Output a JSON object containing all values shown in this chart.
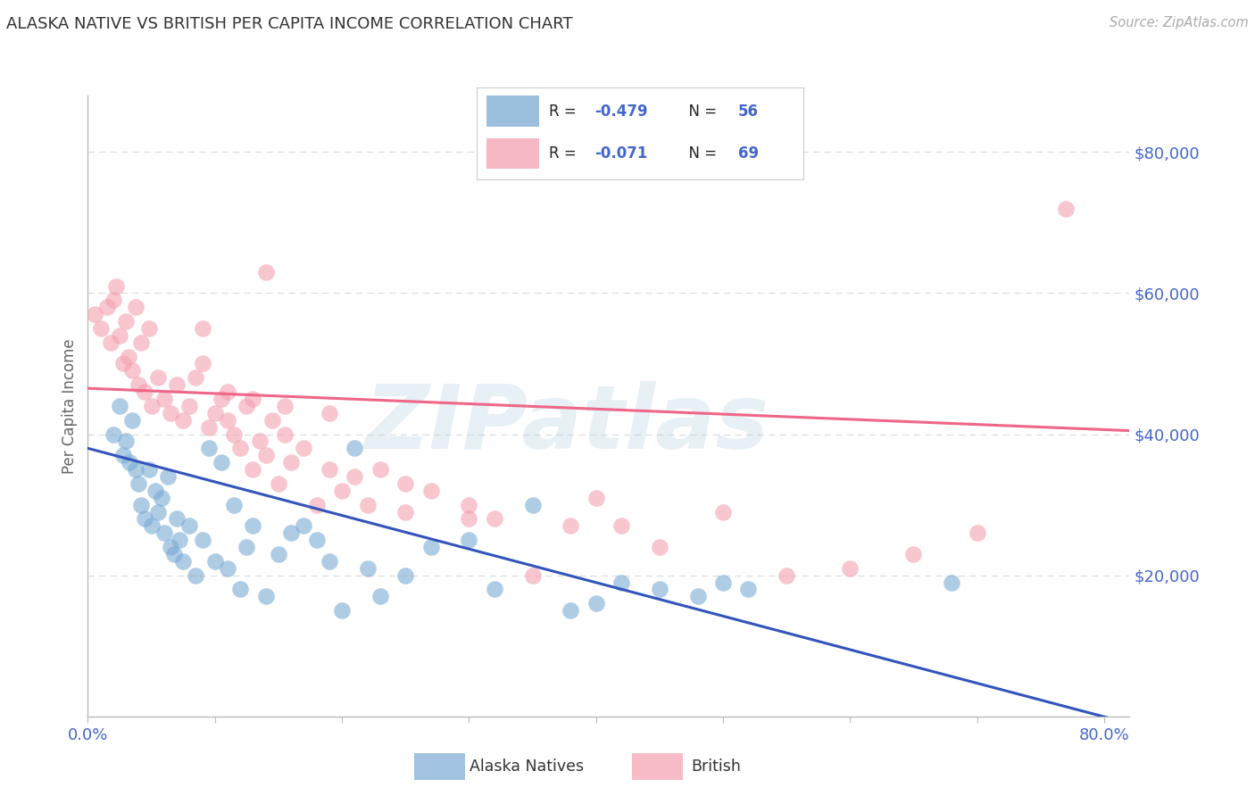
{
  "title": "ALASKA NATIVE VS BRITISH PER CAPITA INCOME CORRELATION CHART",
  "source": "Source: ZipAtlas.com",
  "ylabel": "Per Capita Income",
  "ytick_labels": [
    "$20,000",
    "$40,000",
    "$60,000",
    "$80,000"
  ],
  "ytick_vals": [
    20000,
    40000,
    60000,
    80000
  ],
  "xlim": [
    0.0,
    0.82
  ],
  "ylim": [
    0,
    88000
  ],
  "legend_blue_label": "Alaska Natives",
  "legend_pink_label": "British",
  "legend_r_blue": "R = ",
  "legend_val_blue": "-0.479",
  "legend_n_blue": "N = ",
  "legend_nval_blue": "56",
  "legend_r_pink": "R = ",
  "legend_val_pink": "-0.071",
  "legend_n_pink": "N = ",
  "legend_nval_pink": "69",
  "watermark": "ZIPatlas",
  "blue_color": "#7BAAD4",
  "pink_color": "#F4A0B0",
  "blue_line_color": "#3355BB",
  "pink_line_color": "#EE6688",
  "axis_right_color": "#4466CC",
  "grid_color": "#DDDDDD",
  "blue_scatter_x": [
    0.02,
    0.025,
    0.028,
    0.03,
    0.033,
    0.035,
    0.038,
    0.04,
    0.042,
    0.045,
    0.048,
    0.05,
    0.053,
    0.055,
    0.058,
    0.06,
    0.063,
    0.065,
    0.068,
    0.07,
    0.072,
    0.075,
    0.08,
    0.085,
    0.09,
    0.095,
    0.1,
    0.105,
    0.11,
    0.115,
    0.12,
    0.125,
    0.13,
    0.14,
    0.15,
    0.16,
    0.17,
    0.18,
    0.19,
    0.2,
    0.21,
    0.22,
    0.23,
    0.25,
    0.27,
    0.3,
    0.32,
    0.35,
    0.38,
    0.4,
    0.42,
    0.45,
    0.48,
    0.5,
    0.52,
    0.68
  ],
  "blue_scatter_y": [
    40000,
    44000,
    37000,
    39000,
    36000,
    42000,
    35000,
    33000,
    30000,
    28000,
    35000,
    27000,
    32000,
    29000,
    31000,
    26000,
    34000,
    24000,
    23000,
    28000,
    25000,
    22000,
    27000,
    20000,
    25000,
    38000,
    22000,
    36000,
    21000,
    30000,
    18000,
    24000,
    27000,
    17000,
    23000,
    26000,
    27000,
    25000,
    22000,
    15000,
    38000,
    21000,
    17000,
    20000,
    24000,
    25000,
    18000,
    30000,
    15000,
    16000,
    19000,
    18000,
    17000,
    19000,
    18000,
    19000
  ],
  "pink_scatter_x": [
    0.005,
    0.01,
    0.015,
    0.018,
    0.02,
    0.022,
    0.025,
    0.028,
    0.03,
    0.032,
    0.035,
    0.038,
    0.04,
    0.042,
    0.045,
    0.048,
    0.05,
    0.055,
    0.06,
    0.065,
    0.07,
    0.075,
    0.08,
    0.085,
    0.09,
    0.095,
    0.1,
    0.105,
    0.11,
    0.115,
    0.12,
    0.125,
    0.13,
    0.135,
    0.14,
    0.145,
    0.15,
    0.155,
    0.16,
    0.17,
    0.18,
    0.19,
    0.2,
    0.21,
    0.22,
    0.23,
    0.25,
    0.27,
    0.3,
    0.32,
    0.35,
    0.38,
    0.4,
    0.42,
    0.45,
    0.5,
    0.55,
    0.6,
    0.65,
    0.7,
    0.77,
    0.19,
    0.25,
    0.3,
    0.14,
    0.09,
    0.13,
    0.11,
    0.155
  ],
  "pink_scatter_y": [
    57000,
    55000,
    58000,
    53000,
    59000,
    61000,
    54000,
    50000,
    56000,
    51000,
    49000,
    58000,
    47000,
    53000,
    46000,
    55000,
    44000,
    48000,
    45000,
    43000,
    47000,
    42000,
    44000,
    48000,
    50000,
    41000,
    43000,
    45000,
    42000,
    40000,
    38000,
    44000,
    35000,
    39000,
    37000,
    42000,
    33000,
    40000,
    36000,
    38000,
    30000,
    35000,
    32000,
    34000,
    30000,
    35000,
    29000,
    32000,
    30000,
    28000,
    20000,
    27000,
    31000,
    27000,
    24000,
    29000,
    20000,
    21000,
    23000,
    26000,
    72000,
    43000,
    33000,
    28000,
    63000,
    55000,
    45000,
    46000,
    44000
  ],
  "blue_trend_x": [
    0.0,
    0.82
  ],
  "blue_trend_y": [
    38000,
    -1000
  ],
  "pink_trend_x": [
    0.0,
    0.82
  ],
  "pink_trend_y": [
    46500,
    40500
  ],
  "background_color": "#FFFFFF"
}
